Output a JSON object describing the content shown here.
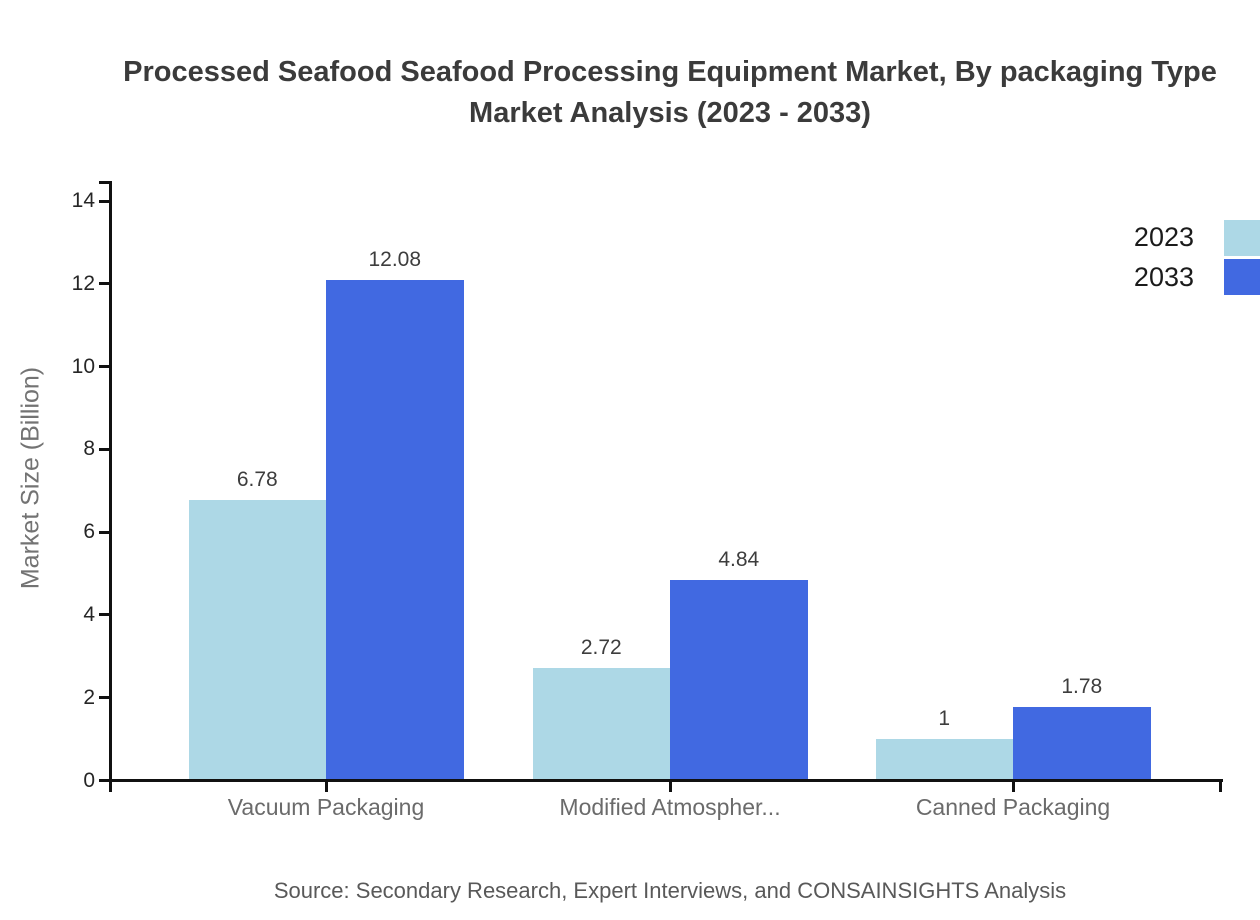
{
  "title": {
    "line1": "Processed Seafood Seafood Processing Equipment Market, By packaging Type",
    "line2": "Market Analysis (2023 - 2033)"
  },
  "source": "Source: Secondary Research, Expert Interviews, and CONSAINSIGHTS Analysis",
  "chart_data": {
    "type": "bar",
    "title": "Processed Seafood Seafood Processing Equipment Market, By packaging Type Market Analysis (2023 - 2033)",
    "categories": [
      "Vacuum Packaging",
      "Modified Atmospher...",
      "Canned Packaging"
    ],
    "series": [
      {
        "name": "2023",
        "color": "#ADD8E6",
        "values": [
          6.78,
          2.72,
          1
        ],
        "display_values": [
          "6.78",
          "2.72",
          "1"
        ]
      },
      {
        "name": "2033",
        "color": "#4169E1",
        "values": [
          12.08,
          4.84,
          1.78
        ],
        "display_values": [
          "12.08",
          "4.84",
          "1.78"
        ]
      }
    ],
    "xlabel": "",
    "ylabel": "Market Size (Billion)",
    "ylim": [
      0,
      14
    ],
    "yticks": [
      0,
      2,
      4,
      6,
      8,
      10,
      12,
      14
    ],
    "grid": false,
    "legend_position": "top-right",
    "value_labels": true,
    "axis_color": "#111111",
    "background_color": "#ffffff"
  }
}
